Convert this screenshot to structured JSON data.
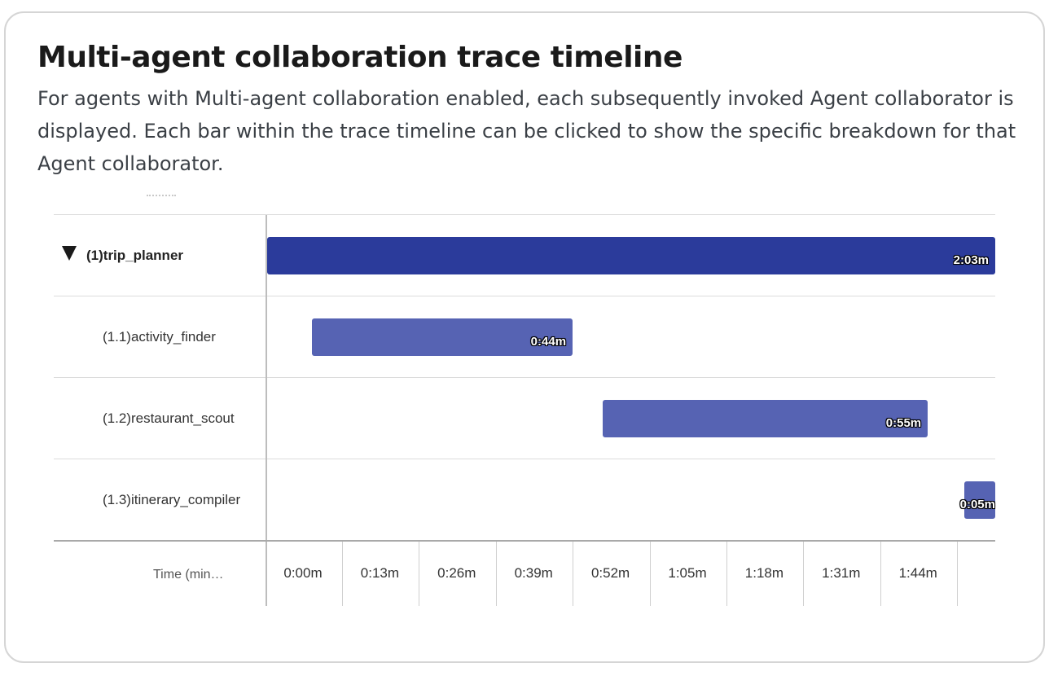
{
  "header": {
    "title": "Multi-agent collaboration trace timeline",
    "description": "For agents with Multi-agent collaboration enabled, each subsequently invoked Agent collaborator is displayed. Each bar within the trace timeline can be clicked to show the specific breakdown for that Agent collaborator."
  },
  "timeline": {
    "axis_title": "Time (min…",
    "ticks": [
      "0:00m",
      "0:13m",
      "0:26m",
      "0:39m",
      "0:52m",
      "1:05m",
      "1:18m",
      "1:31m",
      "1:44m"
    ],
    "rows": [
      {
        "label": "(1)trip_planner",
        "duration_label": "2:03m",
        "start_min": 0.0,
        "end_min": 2.05,
        "level": 0,
        "expanded": true,
        "color": "#2b3b9b"
      },
      {
        "label": "(1.1)activity_finder",
        "duration_label": "0:44m",
        "start_min": 0.125,
        "end_min": 0.86,
        "level": 1,
        "color": "#5663b3"
      },
      {
        "label": "(1.2)restaurant_scout",
        "duration_label": "0:55m",
        "start_min": 0.945,
        "end_min": 1.86,
        "level": 1,
        "color": "#5663b3"
      },
      {
        "label": "(1.3)itinerary_compiler",
        "duration_label": "0:05m",
        "start_min": 1.962,
        "end_min": 2.05,
        "level": 1,
        "color": "#5663b3"
      }
    ]
  }
}
